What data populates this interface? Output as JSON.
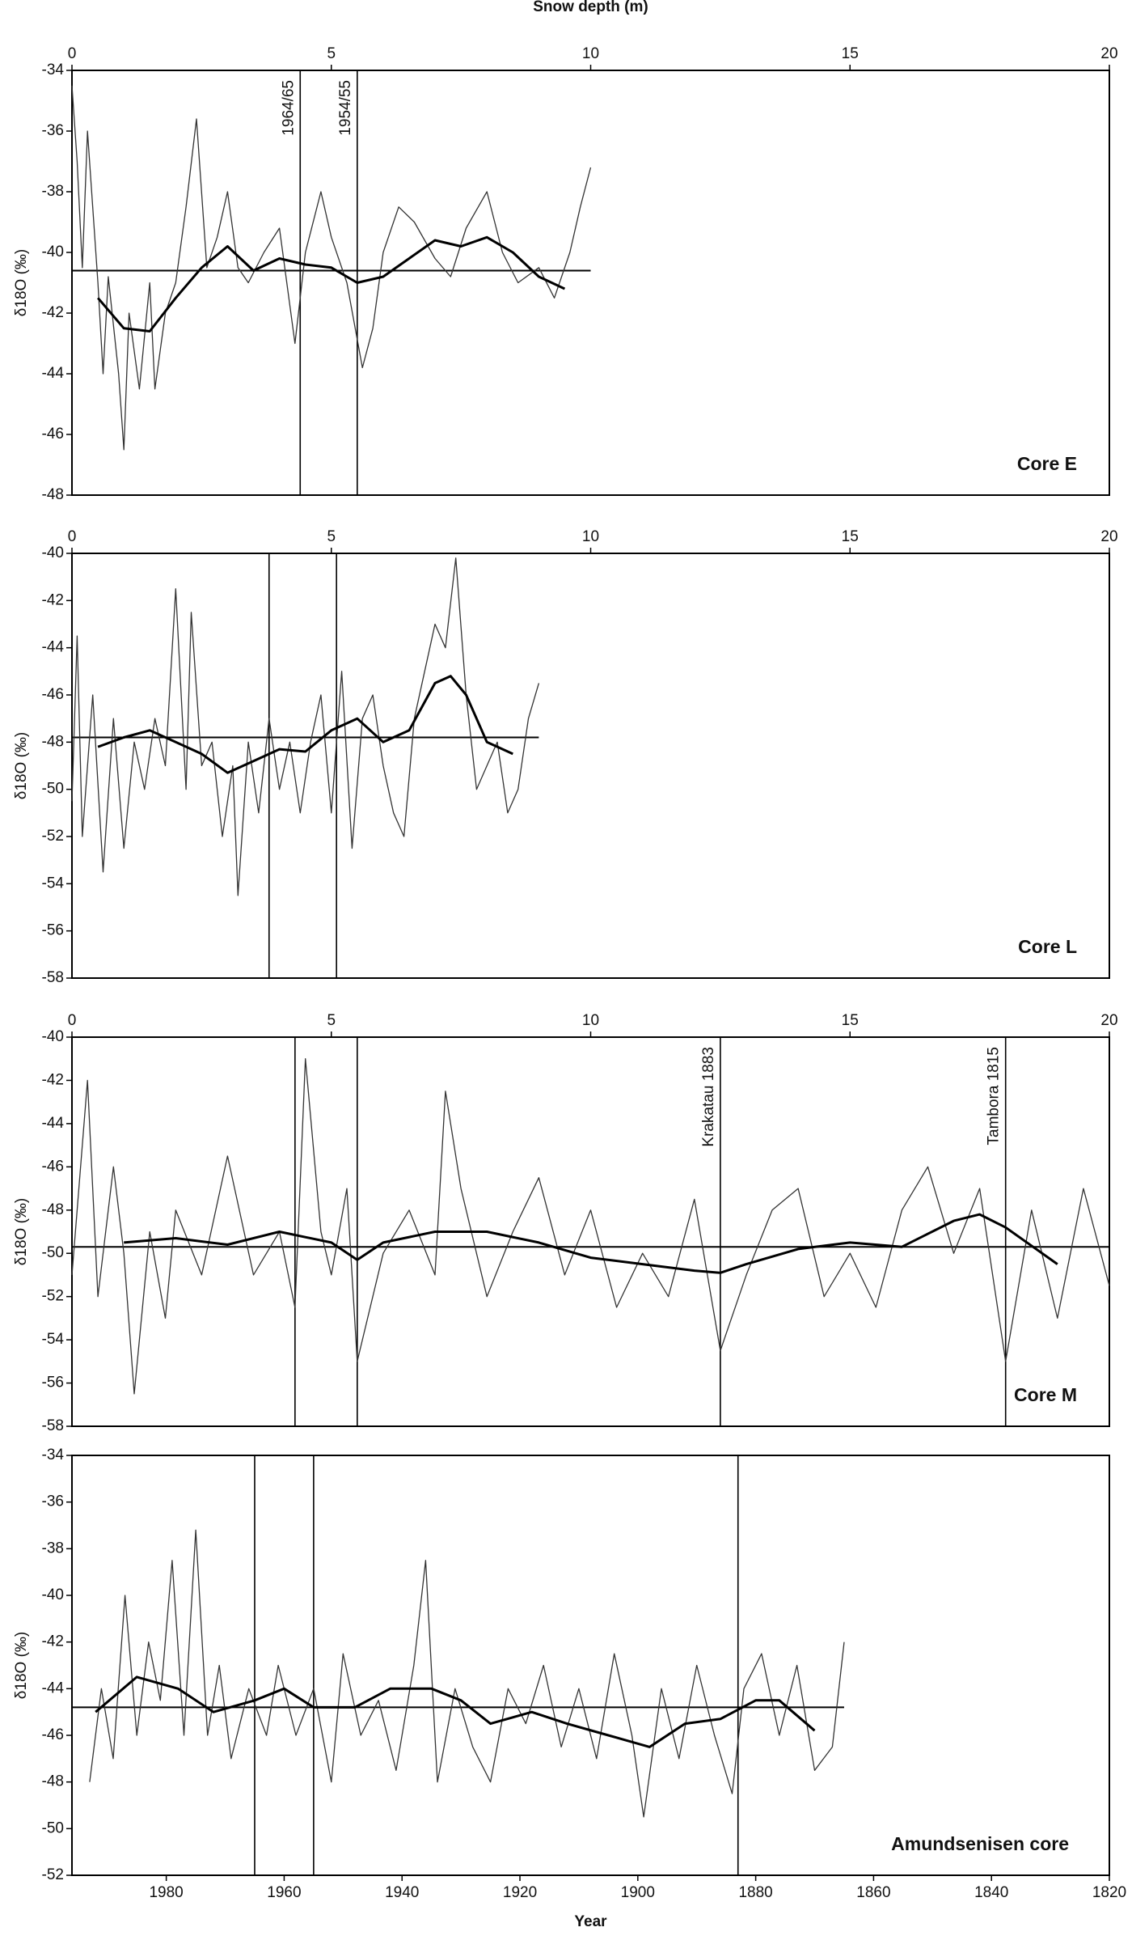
{
  "chart_data": [
    {
      "type": "line",
      "x_label": "Snow depth (m)",
      "y_label": "δ18O (‰)",
      "annotation": "Core E",
      "xlim": [
        0,
        20
      ],
      "xticks": [
        0,
        5,
        10,
        15,
        20
      ],
      "ylim": [
        -48,
        -34
      ],
      "yticks": [
        -48,
        -46,
        -44,
        -42,
        -40,
        -38,
        -36,
        -34
      ],
      "series": [
        {
          "color": "#333333",
          "width": 1.3,
          "x": [
            0,
            0.1,
            0.2,
            0.3,
            0.5,
            0.6,
            0.7,
            0.9,
            1.0,
            1.1,
            1.3,
            1.5,
            1.6,
            1.8,
            2.0,
            2.2,
            2.4,
            2.6,
            2.8,
            3.0,
            3.2,
            3.4,
            3.7,
            4.0,
            4.3,
            4.5,
            4.8,
            5.0,
            5.3,
            5.6,
            5.8,
            6.0,
            6.3,
            6.6,
            7.0,
            7.3,
            7.6,
            8.0,
            8.3,
            8.6,
            9.0,
            9.3,
            9.6,
            9.8,
            10
          ],
          "values": [
            -34.5,
            -37,
            -40.5,
            -36,
            -41,
            -44,
            -40.8,
            -44,
            -46.5,
            -42,
            -44.5,
            -41,
            -44.5,
            -42,
            -41,
            -38.5,
            -35.6,
            -40.5,
            -39.5,
            -38,
            -40.5,
            -41,
            -40,
            -39.2,
            -43,
            -40,
            -38,
            -39.5,
            -41,
            -43.8,
            -42.5,
            -40,
            -38.5,
            -39,
            -40.2,
            -40.8,
            -39.2,
            -38,
            -40,
            -41,
            -40.5,
            -41.5,
            -40,
            -38.5,
            -37.2
          ]
        },
        {
          "color": "#000000",
          "width": 3,
          "x": [
            0.5,
            1,
            1.5,
            2,
            2.5,
            3,
            3.5,
            4,
            4.5,
            5,
            5.5,
            6,
            6.5,
            7,
            7.5,
            8,
            8.5,
            9,
            9.5
          ],
          "values": [
            -41.5,
            -42.5,
            -42.6,
            -41.5,
            -40.5,
            -39.8,
            -40.6,
            -40.2,
            -40.4,
            -40.5,
            -41,
            -40.8,
            -40.2,
            -39.6,
            -39.8,
            -39.5,
            -40,
            -40.8,
            -41.2
          ]
        }
      ],
      "reference_lines": [
        {
          "value": -40.6,
          "xrange": [
            0,
            10
          ]
        }
      ],
      "markers": [
        {
          "x": 4.4,
          "label": "1964/65"
        },
        {
          "x": 5.5,
          "label": "1954/55"
        }
      ]
    },
    {
      "type": "line",
      "y_label": "δ18O (‰)",
      "annotation": "Core L",
      "xlim": [
        0,
        20
      ],
      "xticks": [
        0,
        5,
        10,
        15,
        20
      ],
      "ylim": [
        -58,
        -40
      ],
      "yticks": [
        -58,
        -56,
        -54,
        -52,
        -50,
        -48,
        -46,
        -44,
        -42,
        -40
      ],
      "series": [
        {
          "color": "#333333",
          "width": 1.3,
          "x": [
            0,
            0.1,
            0.2,
            0.4,
            0.6,
            0.8,
            1.0,
            1.2,
            1.4,
            1.6,
            1.8,
            2.0,
            2.2,
            2.3,
            2.5,
            2.7,
            2.9,
            3.1,
            3.2,
            3.4,
            3.6,
            3.8,
            4.0,
            4.2,
            4.4,
            4.6,
            4.8,
            5.0,
            5.2,
            5.4,
            5.6,
            5.8,
            6.0,
            6.2,
            6.4,
            6.6,
            6.8,
            7.0,
            7.2,
            7.4,
            7.6,
            7.8,
            8.0,
            8.2,
            8.4,
            8.6,
            8.8,
            9.0
          ],
          "values": [
            -50.5,
            -43.5,
            -52,
            -46,
            -53.5,
            -47,
            -52.5,
            -48,
            -50,
            -47,
            -49,
            -41.5,
            -50,
            -42.5,
            -49,
            -48,
            -52,
            -49,
            -54.5,
            -48,
            -51,
            -47,
            -50,
            -48,
            -51,
            -48,
            -46,
            -51,
            -45,
            -52.5,
            -47,
            -46,
            -49,
            -51,
            -52,
            -47,
            -45,
            -43,
            -44,
            -40.2,
            -46,
            -50,
            -49,
            -48,
            -51,
            -50,
            -47,
            -45.5
          ]
        },
        {
          "color": "#000000",
          "width": 3,
          "x": [
            0.5,
            1,
            1.5,
            2,
            2.5,
            3,
            3.5,
            4,
            4.5,
            5,
            5.5,
            6,
            6.5,
            7,
            7.3,
            7.6,
            8,
            8.5
          ],
          "values": [
            -48.2,
            -47.8,
            -47.5,
            -48,
            -48.5,
            -49.3,
            -48.8,
            -48.3,
            -48.4,
            -47.5,
            -47,
            -48,
            -47.5,
            -45.5,
            -45.2,
            -46,
            -48,
            -48.5
          ]
        }
      ],
      "reference_lines": [
        {
          "value": -47.8,
          "xrange": [
            0,
            9
          ]
        }
      ],
      "markers": [
        {
          "x": 3.8
        },
        {
          "x": 5.1
        }
      ]
    },
    {
      "type": "line",
      "y_label": "δ18O (‰)",
      "annotation": "Core M",
      "xlim": [
        0,
        20
      ],
      "xticks": [
        0,
        5,
        10,
        15,
        20
      ],
      "ylim": [
        -58,
        -40
      ],
      "yticks": [
        -58,
        -56,
        -54,
        -52,
        -50,
        -48,
        -46,
        -44,
        -42,
        -40
      ],
      "series": [
        {
          "color": "#333333",
          "width": 1.3,
          "x": [
            0,
            0.3,
            0.5,
            0.8,
            1,
            1.2,
            1.5,
            1.8,
            2,
            2.5,
            3,
            3.5,
            4,
            4.3,
            4.5,
            4.8,
            5,
            5.3,
            5.5,
            6,
            6.5,
            7,
            7.2,
            7.5,
            8,
            8.5,
            9,
            9.5,
            10,
            10.5,
            11,
            11.5,
            12,
            12.5,
            13,
            13.5,
            14,
            14.5,
            15,
            15.5,
            16,
            16.5,
            17,
            17.5,
            18,
            18.5,
            19,
            19.5,
            20
          ],
          "values": [
            -51,
            -42,
            -52,
            -46,
            -50,
            -56.5,
            -49,
            -53,
            -48,
            -51,
            -45.5,
            -51,
            -49,
            -52.5,
            -41,
            -49,
            -51,
            -47,
            -55,
            -50,
            -48,
            -51,
            -42.5,
            -47,
            -52,
            -49,
            -46.5,
            -51,
            -48,
            -52.5,
            -50,
            -52,
            -47.5,
            -54.5,
            -51,
            -48,
            -47,
            -52,
            -50,
            -52.5,
            -48,
            -46,
            -50,
            -47,
            -55,
            -48,
            -53,
            -47,
            -51.5
          ]
        },
        {
          "color": "#000000",
          "width": 3,
          "x": [
            1,
            2,
            3,
            4,
            5,
            5.5,
            6,
            7,
            8,
            9,
            10,
            11,
            12,
            12.5,
            13,
            14,
            15,
            16,
            17,
            17.5,
            18,
            19
          ],
          "values": [
            -49.5,
            -49.3,
            -49.6,
            -49,
            -49.5,
            -50.3,
            -49.5,
            -49,
            -49,
            -49.5,
            -50.2,
            -50.5,
            -50.8,
            -50.9,
            -50.5,
            -49.8,
            -49.5,
            -49.7,
            -48.5,
            -48.2,
            -48.8,
            -50.5
          ]
        }
      ],
      "reference_lines": [
        {
          "value": -49.7,
          "xrange": [
            0,
            20
          ]
        }
      ],
      "markers": [
        {
          "x": 4.3
        },
        {
          "x": 5.5
        },
        {
          "x": 12.5,
          "label": "Krakatau 1883"
        },
        {
          "x": 18.0,
          "label": "Tambora 1815"
        }
      ]
    },
    {
      "type": "line",
      "x_label": "Year",
      "y_label": "δ18O (‰)",
      "annotation": "Amundsenisen core",
      "xlim": [
        1996,
        1820
      ],
      "xticks": [
        1980,
        1960,
        1940,
        1920,
        1900,
        1880,
        1860,
        1840,
        1820
      ],
      "ylim": [
        -52,
        -34
      ],
      "yticks": [
        -52,
        -50,
        -48,
        -46,
        -44,
        -42,
        -40,
        -38,
        -36,
        -34
      ],
      "series": [
        {
          "color": "#333333",
          "width": 1.3,
          "x": [
            1993,
            1991,
            1989,
            1987,
            1985,
            1983,
            1981,
            1979,
            1977,
            1975,
            1973,
            1971,
            1969,
            1966,
            1963,
            1961,
            1958,
            1955,
            1952,
            1950,
            1947,
            1944,
            1941,
            1938,
            1936,
            1934,
            1931,
            1928,
            1925,
            1922,
            1919,
            1916,
            1913,
            1910,
            1907,
            1904,
            1901,
            1899,
            1896,
            1893,
            1890,
            1887,
            1884,
            1882,
            1879,
            1876,
            1873,
            1870,
            1867,
            1865
          ],
          "values": [
            -48,
            -44,
            -47,
            -40,
            -46,
            -42,
            -44.5,
            -38.5,
            -46,
            -37.2,
            -46,
            -43,
            -47,
            -44,
            -46,
            -43,
            -46,
            -44,
            -48,
            -42.5,
            -46,
            -44.5,
            -47.5,
            -43,
            -38.5,
            -48,
            -44,
            -46.5,
            -48,
            -44,
            -45.5,
            -43,
            -46.5,
            -44,
            -47,
            -42.5,
            -46,
            -49.5,
            -44,
            -47,
            -43,
            -46,
            -48.5,
            -44,
            -42.5,
            -46,
            -43,
            -47.5,
            -46.5,
            -42
          ]
        },
        {
          "color": "#000000",
          "width": 3,
          "x": [
            1992,
            1985,
            1978,
            1972,
            1965,
            1960,
            1955,
            1948,
            1942,
            1935,
            1930,
            1925,
            1918,
            1912,
            1905,
            1898,
            1892,
            1886,
            1880,
            1876,
            1870
          ],
          "values": [
            -45,
            -43.5,
            -44,
            -45,
            -44.5,
            -44,
            -44.8,
            -44.8,
            -44,
            -44,
            -44.5,
            -45.5,
            -45,
            -45.5,
            -46,
            -46.5,
            -45.5,
            -45.3,
            -44.5,
            -44.5,
            -45.8
          ]
        }
      ],
      "reference_lines": [
        {
          "value": -44.8,
          "xrange": [
            1996,
            1865
          ]
        }
      ],
      "markers": [
        {
          "x": 1965
        },
        {
          "x": 1955
        },
        {
          "x": 1883
        }
      ]
    }
  ]
}
